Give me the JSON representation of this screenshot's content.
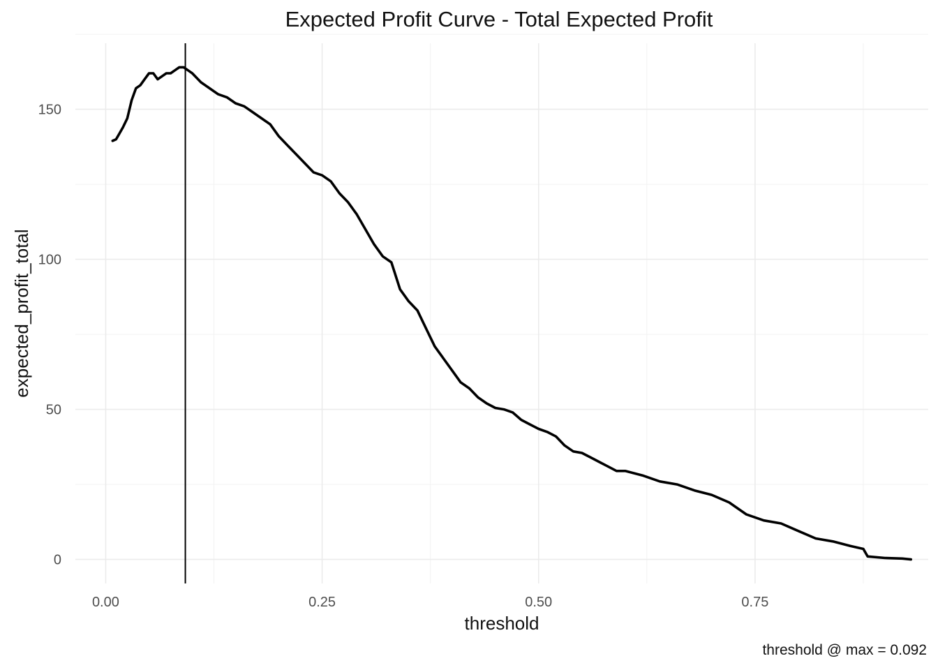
{
  "chart_data": {
    "type": "line",
    "title": "Expected Profit Curve - Total Expected Profit",
    "xlabel": "threshold",
    "ylabel": "expected_profit_total",
    "caption": "threshold @ max = 0.092",
    "xlim": [
      -0.035,
      0.95
    ],
    "ylim": [
      -8,
      172
    ],
    "x_ticks": [
      0.0,
      0.25,
      0.5,
      0.75
    ],
    "x_tick_labels": [
      "0.00",
      "0.25",
      "0.50",
      "0.75"
    ],
    "y_ticks": [
      0,
      50,
      100,
      150
    ],
    "y_tick_labels": [
      "0",
      "50",
      "100",
      "150"
    ],
    "grid": true,
    "vline_x": 0.092,
    "line_color": "#000000",
    "series": [
      {
        "x": [
          0.008,
          0.012,
          0.016,
          0.02,
          0.025,
          0.03,
          0.035,
          0.04,
          0.045,
          0.05,
          0.055,
          0.06,
          0.065,
          0.07,
          0.075,
          0.08,
          0.085,
          0.09,
          0.095,
          0.1,
          0.11,
          0.12,
          0.13,
          0.14,
          0.15,
          0.16,
          0.17,
          0.18,
          0.19,
          0.2,
          0.21,
          0.22,
          0.23,
          0.24,
          0.25,
          0.26,
          0.27,
          0.28,
          0.29,
          0.3,
          0.31,
          0.32,
          0.33,
          0.34,
          0.345,
          0.35,
          0.36,
          0.37,
          0.38,
          0.39,
          0.4,
          0.41,
          0.42,
          0.43,
          0.44,
          0.45,
          0.46,
          0.47,
          0.48,
          0.49,
          0.5,
          0.51,
          0.52,
          0.53,
          0.54,
          0.55,
          0.56,
          0.57,
          0.58,
          0.59,
          0.6,
          0.62,
          0.64,
          0.66,
          0.68,
          0.7,
          0.72,
          0.74,
          0.76,
          0.78,
          0.8,
          0.82,
          0.84,
          0.86,
          0.875,
          0.88,
          0.9,
          0.92,
          0.93
        ],
        "y": [
          139.5,
          140,
          142,
          144,
          147,
          153,
          157,
          158,
          160,
          162,
          162,
          160,
          161,
          162,
          162,
          163,
          164,
          164,
          163,
          162,
          159,
          157,
          155,
          154,
          152,
          151,
          149,
          147,
          145,
          141,
          138,
          135,
          132,
          129,
          128,
          126,
          122,
          119,
          115,
          110,
          105,
          101,
          99,
          90,
          88,
          86,
          83,
          77,
          71,
          67,
          63,
          59,
          57,
          54,
          52,
          50.5,
          50,
          49,
          46.5,
          45,
          43.5,
          42.5,
          41,
          38,
          36,
          35.5,
          34,
          32.5,
          31,
          29.5,
          29.5,
          28,
          26,
          25,
          23,
          21.5,
          19,
          15,
          13,
          12,
          9.5,
          7,
          6,
          4.5,
          3.5,
          1,
          0.5,
          0.3,
          0
        ]
      }
    ]
  }
}
